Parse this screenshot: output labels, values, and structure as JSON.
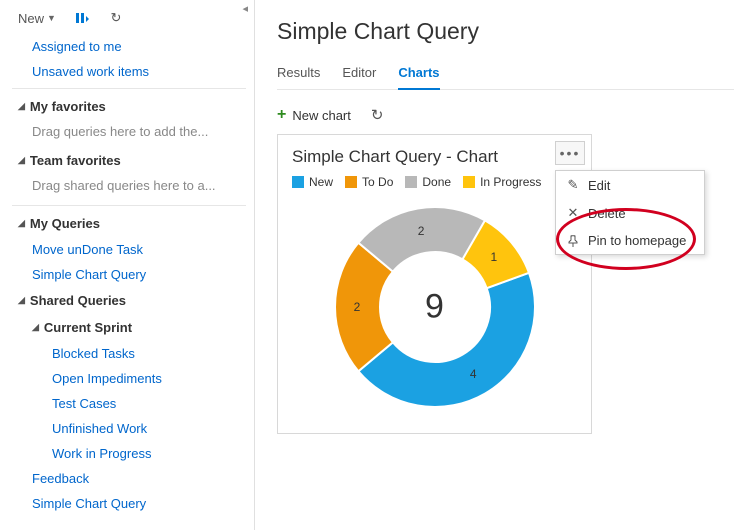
{
  "sidebar": {
    "new_label": "New",
    "links_top": [
      "Assigned to me",
      "Unsaved work items"
    ],
    "fav_header": "My favorites",
    "fav_placeholder": "Drag queries here to add the...",
    "teamfav_header": "Team favorites",
    "teamfav_placeholder": "Drag shared queries here to a...",
    "myq_header": "My Queries",
    "myq_items": [
      "Move unDone Task",
      "Simple Chart Query"
    ],
    "sharedq_header": "Shared Queries",
    "sprint_header": "Current Sprint",
    "sprint_items": [
      "Blocked Tasks",
      "Open Impediments",
      "Test Cases",
      "Unfinished Work",
      "Work in Progress"
    ],
    "shared_tail": [
      "Feedback",
      "Simple Chart Query"
    ]
  },
  "main": {
    "title": "Simple Chart Query",
    "tabs": {
      "results": "Results",
      "editor": "Editor",
      "charts": "Charts"
    },
    "newchart_label": "New chart",
    "card_title": "Simple Chart Query - Chart"
  },
  "chart": {
    "type": "donut",
    "total": "9",
    "series": [
      {
        "label": "New",
        "value": 4,
        "color": "#1ba1e2"
      },
      {
        "label": "To Do",
        "value": 2,
        "color": "#f09609"
      },
      {
        "label": "Done",
        "value": 2,
        "color": "#b8b8b8"
      },
      {
        "label": "In Progress",
        "value": 1,
        "color": "#ffc40d"
      }
    ],
    "inner_radius": 55,
    "outer_radius": 100,
    "background": "#ffffff",
    "center_fontsize": 34,
    "label_fontsize": 12,
    "start_angle_deg": -20
  },
  "menu": {
    "edit": "Edit",
    "delete": "Delete",
    "pin": "Pin to homepage"
  },
  "colors": {
    "link": "#0066cc",
    "accent": "#0078d4",
    "border": "#e0e0e0",
    "annotation": "#d1001f"
  }
}
